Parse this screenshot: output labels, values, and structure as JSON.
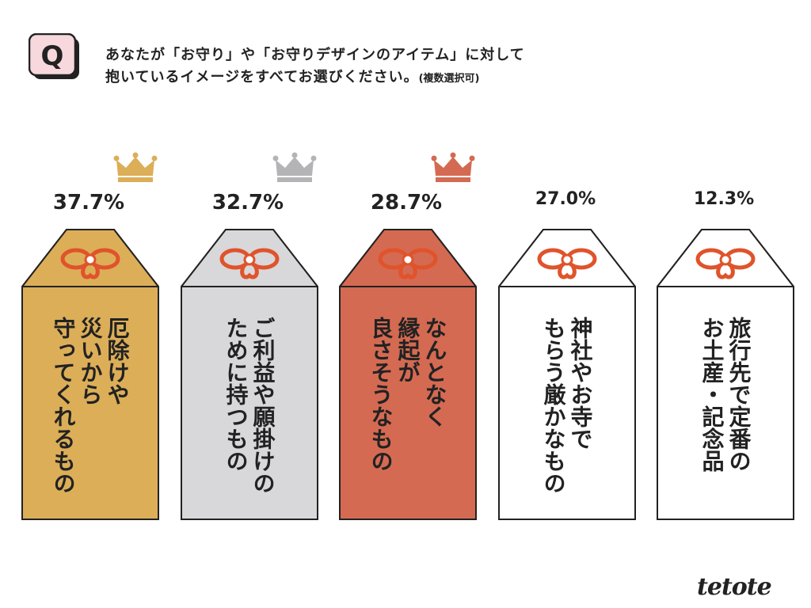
{
  "header": {
    "badge_letter": "Q",
    "question_line1": "あなたが「お守り」や「お守りデザインのアイテム」に対して",
    "question_line2": "抱いているイメージをすべてお選びください。",
    "question_note": "(複数選択可)"
  },
  "chart_data": {
    "type": "bar",
    "categories": [
      "厄除けや災いから守ってくれるもの",
      "ご利益や願掛けのために持つもの",
      "なんとなく縁起が良さそうなもの",
      "神社やお寺でもらう厳かなもの",
      "旅行先で定番のお土産・記念品"
    ],
    "values": [
      37.7,
      32.7,
      28.7,
      27.0,
      12.3
    ],
    "value_labels": [
      "37.7%",
      "32.7%",
      "28.7%",
      "27.0%",
      "12.3%"
    ],
    "label_lines": [
      [
        "厄除けや",
        "災いから",
        "守ってくれるもの"
      ],
      [
        "ご利益や願掛けの",
        "ために持つもの"
      ],
      [
        "なんとなく",
        "縁起が",
        "良さそうなもの"
      ],
      [
        "神社やお寺で",
        "もらう厳かなもの"
      ],
      [
        "旅行先で定番の",
        "お土産・記念品"
      ]
    ],
    "fill_colors": [
      "#dcae58",
      "#d8d7da",
      "#d46a52",
      "#ffffff",
      "#ffffff"
    ],
    "crowns": [
      "gold",
      "silver",
      "bronze",
      null,
      null
    ],
    "crown_colors": {
      "gold": "#dcae58",
      "silver": "#b4b3b6",
      "bronze": "#d46a52"
    },
    "knot_color": "#e0532b"
  },
  "brand": {
    "logo": "tetote"
  }
}
